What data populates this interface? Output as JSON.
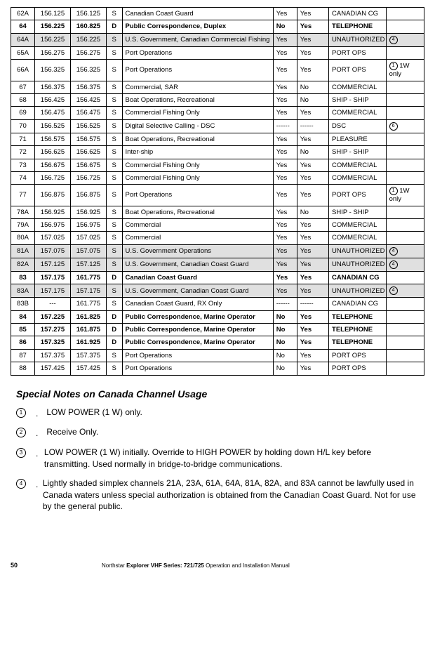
{
  "table": {
    "rows": [
      {
        "ch": "62A",
        "f1": "156.125",
        "f2": "156.125",
        "sd": "S",
        "use": "Canadian Coast Guard",
        "c1": "Yes",
        "c2": "Yes",
        "disp": "CANADIAN CG",
        "note": "",
        "bold": false,
        "shaded": false
      },
      {
        "ch": "64",
        "f1": "156.225",
        "f2": "160.825",
        "sd": "D",
        "use": "Public Correspondence, Duplex",
        "c1": "No",
        "c2": "Yes",
        "disp": "TELEPHONE",
        "note": "",
        "bold": true,
        "shaded": false
      },
      {
        "ch": "64A",
        "f1": "156.225",
        "f2": "156.225",
        "sd": "S",
        "use": "U.S. Government, Canadian Commercial Fishing",
        "c1": "Yes",
        "c2": "Yes",
        "disp": "UNAUTHORIZED",
        "note": "④",
        "bold": false,
        "shaded": true
      },
      {
        "ch": "65A",
        "f1": "156.275",
        "f2": "156.275",
        "sd": "S",
        "use": "Port Operations",
        "c1": "Yes",
        "c2": "Yes",
        "disp": "PORT OPS",
        "note": "",
        "bold": false,
        "shaded": false
      },
      {
        "ch": "66A",
        "f1": "156.325",
        "f2": "156.325",
        "sd": "S",
        "use": "Port Operations",
        "c1": "Yes",
        "c2": "Yes",
        "disp": "PORT OPS",
        "note": "① 1W only",
        "bold": false,
        "shaded": false
      },
      {
        "ch": "67",
        "f1": "156.375",
        "f2": "156.375",
        "sd": "S",
        "use": "Commercial, SAR",
        "c1": "Yes",
        "c2": "No",
        "disp": "COMMERCIAL",
        "note": "",
        "bold": false,
        "shaded": false
      },
      {
        "ch": "68",
        "f1": "156.425",
        "f2": "156.425",
        "sd": "S",
        "use": "Boat Operations, Recreational",
        "c1": "Yes",
        "c2": "No",
        "disp": "SHIP - SHIP",
        "note": "",
        "bold": false,
        "shaded": false
      },
      {
        "ch": "69",
        "f1": "156.475",
        "f2": "156.475",
        "sd": "S",
        "use": "Commercial Fishing Only",
        "c1": "Yes",
        "c2": "Yes",
        "disp": "COMMERCIAL",
        "note": "",
        "bold": false,
        "shaded": false
      },
      {
        "ch": "70",
        "f1": "156.525",
        "f2": "156.525",
        "sd": "S",
        "use": "Digital Selective Calling - DSC",
        "c1": "------",
        "c2": "------",
        "disp": "DSC",
        "note": "⑥",
        "bold": false,
        "shaded": false
      },
      {
        "ch": "71",
        "f1": "156.575",
        "f2": "156.575",
        "sd": "S",
        "use": "Boat Operations, Recreational",
        "c1": "Yes",
        "c2": "Yes",
        "disp": "PLEASURE",
        "note": "",
        "bold": false,
        "shaded": false
      },
      {
        "ch": "72",
        "f1": "156.625",
        "f2": "156.625",
        "sd": "S",
        "use": "Inter-ship",
        "c1": "Yes",
        "c2": "No",
        "disp": "SHIP - SHIP",
        "note": "",
        "bold": false,
        "shaded": false
      },
      {
        "ch": "73",
        "f1": "156.675",
        "f2": "156.675",
        "sd": "S",
        "use": "Commercial Fishing Only",
        "c1": "Yes",
        "c2": "Yes",
        "disp": "COMMERCIAL",
        "note": "",
        "bold": false,
        "shaded": false
      },
      {
        "ch": "74",
        "f1": "156.725",
        "f2": "156.725",
        "sd": "S",
        "use": "Commercial Fishing Only",
        "c1": "Yes",
        "c2": "Yes",
        "disp": "COMMERCIAL",
        "note": "",
        "bold": false,
        "shaded": false
      },
      {
        "ch": "77",
        "f1": "156.875",
        "f2": "156.875",
        "sd": "S",
        "use": "Port Operations",
        "c1": "Yes",
        "c2": "Yes",
        "disp": "PORT OPS",
        "note": "① 1W only",
        "bold": false,
        "shaded": false
      },
      {
        "ch": "78A",
        "f1": "156.925",
        "f2": "156.925",
        "sd": "S",
        "use": "Boat Operations, Recreational",
        "c1": "Yes",
        "c2": "No",
        "disp": "SHIP - SHIP",
        "note": "",
        "bold": false,
        "shaded": false
      },
      {
        "ch": "79A",
        "f1": "156.975",
        "f2": "156.975",
        "sd": "S",
        "use": "Commercial",
        "c1": "Yes",
        "c2": "Yes",
        "disp": "COMMERCIAL",
        "note": "",
        "bold": false,
        "shaded": false
      },
      {
        "ch": "80A",
        "f1": "157.025",
        "f2": "157.025",
        "sd": "S",
        "use": "Commercial",
        "c1": "Yes",
        "c2": "Yes",
        "disp": "COMMERCIAL",
        "note": "",
        "bold": false,
        "shaded": false
      },
      {
        "ch": "81A",
        "f1": "157.075",
        "f2": "157.075",
        "sd": "S",
        "use": "U.S. Government Operations",
        "c1": "Yes",
        "c2": "Yes",
        "disp": "UNAUTHORIZED",
        "note": "④",
        "bold": false,
        "shaded": true
      },
      {
        "ch": "82A",
        "f1": "157.125",
        "f2": "157.125",
        "sd": "S",
        "use": "U.S. Government, Canadian Coast Guard",
        "c1": "Yes",
        "c2": "Yes",
        "disp": "UNAUTHORIZED",
        "note": "④",
        "bold": false,
        "shaded": true
      },
      {
        "ch": "83",
        "f1": "157.175",
        "f2": "161.775",
        "sd": "D",
        "use": "Canadian Coast Guard",
        "c1": "Yes",
        "c2": "Yes",
        "disp": "CANADIAN CG",
        "note": "",
        "bold": true,
        "shaded": false
      },
      {
        "ch": "83A",
        "f1": "157.175",
        "f2": "157.175",
        "sd": "S",
        "use": "U.S. Government, Canadian Coast Guard",
        "c1": "Yes",
        "c2": "Yes",
        "disp": "UNAUTHORIZED",
        "note": "④",
        "bold": false,
        "shaded": true
      },
      {
        "ch": "83B",
        "f1": "---",
        "f2": "161.775",
        "sd": "S",
        "use": "Canadian Coast Guard, RX Only",
        "c1": "------",
        "c2": "------",
        "disp": "CANADIAN CG",
        "note": "",
        "bold": false,
        "shaded": false
      },
      {
        "ch": "84",
        "f1": "157.225",
        "f2": "161.825",
        "sd": "D",
        "use": "Public Correspondence, Marine Operator",
        "c1": "No",
        "c2": "Yes",
        "disp": "TELEPHONE",
        "note": "",
        "bold": true,
        "shaded": false
      },
      {
        "ch": "85",
        "f1": "157.275",
        "f2": "161.875",
        "sd": "D",
        "use": "Public Correspondence, Marine Operator",
        "c1": "No",
        "c2": "Yes",
        "disp": "TELEPHONE",
        "note": "",
        "bold": true,
        "shaded": false
      },
      {
        "ch": "86",
        "f1": "157.325",
        "f2": "161.925",
        "sd": "D",
        "use": "Public Correspondence, Marine Operator",
        "c1": "No",
        "c2": "Yes",
        "disp": "TELEPHONE",
        "note": "",
        "bold": true,
        "shaded": false
      },
      {
        "ch": "87",
        "f1": "157.375",
        "f2": "157.375",
        "sd": "S",
        "use": "Port Operations",
        "c1": "No",
        "c2": "Yes",
        "disp": "PORT OPS",
        "note": "",
        "bold": false,
        "shaded": false
      },
      {
        "ch": "88",
        "f1": "157.425",
        "f2": "157.425",
        "sd": "S",
        "use": "Port Operations",
        "c1": "No",
        "c2": "Yes",
        "disp": "PORT OPS",
        "note": "",
        "bold": false,
        "shaded": false
      }
    ]
  },
  "notes_title": "Special Notes on Canada Channel Usage",
  "notes": [
    {
      "num": "1",
      "text": "LOW POWER (1 W) only."
    },
    {
      "num": "2",
      "text": "Receive Only."
    },
    {
      "num": "3",
      "text": "LOW POWER (1 W) initially. Override to HIGH POWER by holding down H/L key before transmitting. Used normally in bridge-to-bridge communications."
    },
    {
      "num": "4",
      "text": "Lightly shaded simplex channels 21A, 23A, 61A, 64A, 81A, 82A, and 83A cannot be lawfully used in Canada waters unless special authorization is obtained from the Canadian Coast Guard. Not for use by the general public."
    }
  ],
  "footer": {
    "page": "50",
    "prefix": "Northstar ",
    "bold": "Explorer VHF Series: 721/725",
    "suffix": " Operation and Installation Manual"
  }
}
